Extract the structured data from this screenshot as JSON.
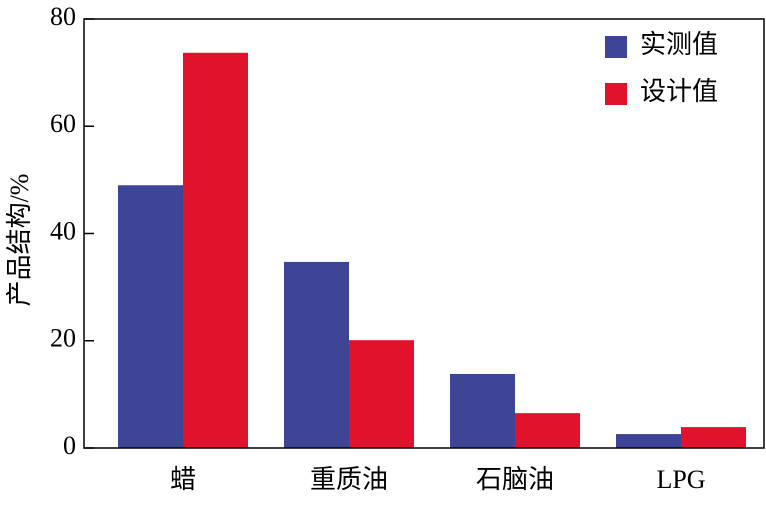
{
  "chart_data": {
    "type": "bar",
    "y_label": "产品结构/%",
    "categories": [
      "蜡",
      "重质油",
      "石脑油",
      "LPG"
    ],
    "series": [
      {
        "name": "实测值",
        "color": "#3f4596",
        "values": [
          49,
          34.7,
          13.8,
          2.6
        ]
      },
      {
        "name": "设计值",
        "color": "#e0122c",
        "values": [
          73.7,
          20.1,
          6.5,
          3.9
        ]
      }
    ],
    "ylim": [
      0,
      80
    ],
    "yticks": [
      0,
      20,
      40,
      60,
      80
    ],
    "legend": "upper right"
  }
}
